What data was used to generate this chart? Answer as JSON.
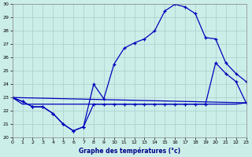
{
  "background_color": "#cceee8",
  "grid_color": "#aacccc",
  "line_color": "#0000bb",
  "xlabel": "Graphe des températures (°c)",
  "ylim": [
    20,
    30
  ],
  "xlim": [
    0,
    23
  ],
  "yticks": [
    20,
    21,
    22,
    23,
    24,
    25,
    26,
    27,
    28,
    29,
    30
  ],
  "xticks": [
    0,
    1,
    2,
    3,
    4,
    5,
    6,
    7,
    8,
    9,
    10,
    11,
    12,
    13,
    14,
    15,
    16,
    17,
    18,
    19,
    20,
    21,
    22,
    23
  ],
  "line1_x": [
    0,
    1,
    2,
    3,
    4,
    5,
    6,
    7,
    8,
    9,
    10,
    11,
    12,
    13,
    14,
    15,
    16,
    17,
    18,
    19,
    20,
    21,
    22,
    23
  ],
  "line1_y": [
    23.0,
    22.7,
    22.3,
    22.3,
    21.8,
    21.0,
    20.5,
    20.8,
    24.0,
    22.9,
    25.5,
    26.7,
    27.1,
    27.4,
    28.0,
    29.5,
    30.0,
    29.8,
    29.3,
    27.5,
    27.4,
    25.6,
    24.8,
    24.2
  ],
  "line2_x": [
    0,
    1,
    2,
    3,
    4,
    5,
    6,
    7,
    8,
    9,
    10,
    11,
    12,
    13,
    14,
    15,
    16,
    17,
    18,
    19,
    20,
    21,
    22,
    23
  ],
  "line2_y": [
    23.0,
    22.7,
    22.3,
    22.3,
    21.8,
    21.0,
    20.5,
    20.8,
    22.5,
    22.5,
    22.5,
    22.5,
    22.5,
    22.5,
    22.5,
    22.5,
    22.5,
    22.5,
    22.5,
    22.5,
    25.6,
    24.8,
    24.2,
    22.6
  ],
  "line3_x": [
    0,
    23
  ],
  "line3_y": [
    23.0,
    22.6
  ],
  "line4_x": [
    0,
    1,
    2,
    3,
    4,
    5,
    6,
    7,
    8,
    9,
    10,
    11,
    12,
    13,
    14,
    15,
    16,
    17,
    18,
    19,
    20,
    21,
    22,
    23
  ],
  "line4_y": [
    23.0,
    22.5,
    22.5,
    22.5,
    22.5,
    22.5,
    22.5,
    22.5,
    22.5,
    22.5,
    22.5,
    22.5,
    22.5,
    22.5,
    22.5,
    22.5,
    22.5,
    22.5,
    22.5,
    22.5,
    22.5,
    22.5,
    22.5,
    22.6
  ]
}
